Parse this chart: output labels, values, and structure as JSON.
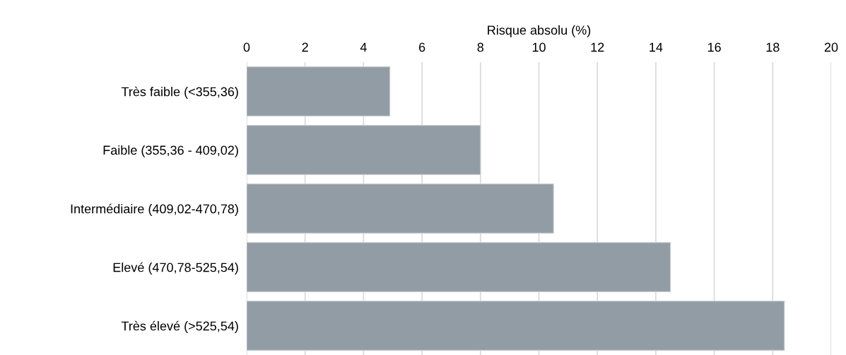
{
  "chart_data": {
    "type": "bar",
    "orientation": "horizontal",
    "xlabel": "Risque absolu (%)",
    "categories": [
      "Très faible (<355,36)",
      "Faible (355,36 - 409,02)",
      "Intermédiaire (409,02-470,78)",
      "Elevé (470,78-525,54)",
      "Très élevé (>525,54)"
    ],
    "values": [
      4.9,
      8.0,
      10.5,
      14.5,
      18.4
    ],
    "color": "#929ca4",
    "xlim": [
      0,
      20
    ],
    "xticks": [
      0,
      2,
      4,
      6,
      8,
      10,
      12,
      14,
      16,
      18,
      20
    ],
    "grid": "x"
  }
}
